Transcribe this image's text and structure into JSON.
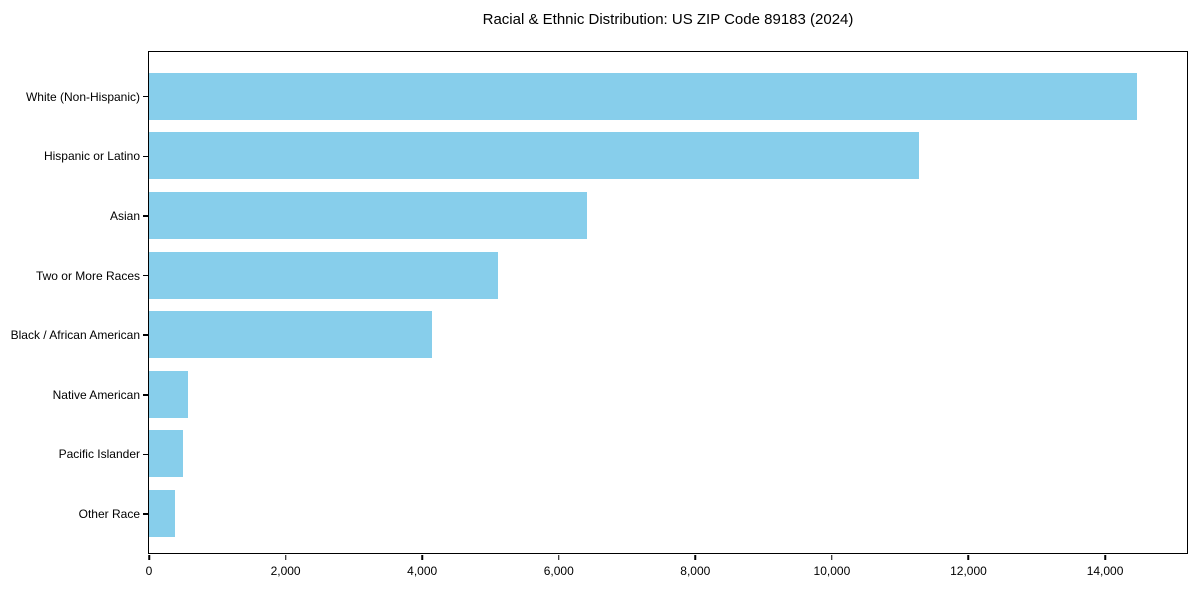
{
  "chart_data": {
    "type": "bar",
    "orientation": "horizontal",
    "title": "Racial & Ethnic Distribution: US ZIP Code 89183 (2024)",
    "categories": [
      "White (Non-Hispanic)",
      "Hispanic or Latino",
      "Asian",
      "Two or More Races",
      "Black / African American",
      "Native American",
      "Pacific Islander",
      "Other Race"
    ],
    "values": [
      14475,
      11290,
      6425,
      5115,
      4155,
      575,
      505,
      390
    ],
    "xlabel": "",
    "ylabel": "",
    "xlim": [
      0,
      15200
    ],
    "x_ticks": [
      0,
      2000,
      4000,
      6000,
      8000,
      10000,
      12000,
      14000
    ],
    "x_tick_labels": [
      "0",
      "2,000",
      "4,000",
      "6,000",
      "8,000",
      "10,000",
      "12,000",
      "14,000"
    ],
    "bar_color": "#87CEEB",
    "text_color": "#000000",
    "background": "#FFFFFF",
    "grid": false,
    "legend": "none"
  }
}
